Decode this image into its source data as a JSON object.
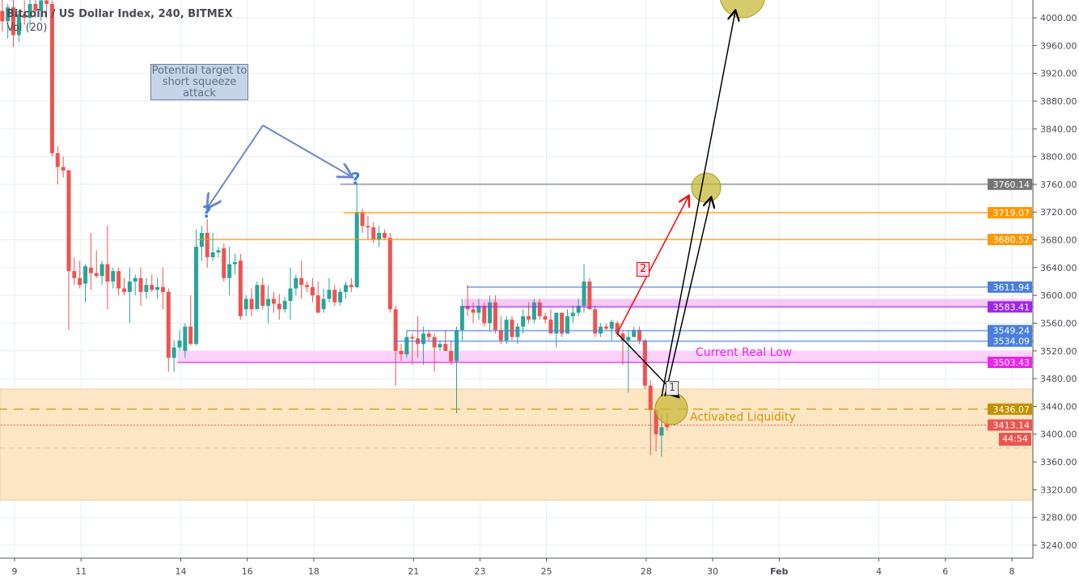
{
  "header": {
    "symbol_line": "Bitcoin / US Dollar Index, 240, BITMEX",
    "indicator": "Vol (20)"
  },
  "annotations": {
    "note": "Potential target to short squeeze attack",
    "current_real_low": "Current Real Low",
    "activated_liquidity": "Activated Liquidity",
    "step1": "1",
    "step2": "2",
    "question": "?"
  },
  "countdown": "44:54",
  "colors": {
    "up": "#26a69a",
    "down": "#ef5350",
    "orange": "#ff9800",
    "blue": "#4a7fe0",
    "purple": "#9c27b0",
    "magenta": "#ee22ee",
    "liquidity_zone": "#fde6c4",
    "circle": "#c8b93a"
  },
  "chart_data": {
    "type": "candlestick",
    "title": "Bitcoin / US Dollar Index, 240, BITMEX",
    "interval": "240",
    "ylim": [
      3220,
      4030
    ],
    "y_ticks": [
      4000,
      3960,
      3920,
      3880,
      3840,
      3800,
      3760,
      3720,
      3680,
      3640,
      3600,
      3560,
      3520,
      3480,
      3440,
      3400,
      3360,
      3320,
      3280,
      3240
    ],
    "x_ticks": [
      {
        "label": "9",
        "day": 9
      },
      {
        "label": "11",
        "day": 11
      },
      {
        "label": "14",
        "day": 14
      },
      {
        "label": "16",
        "day": 16
      },
      {
        "label": "18",
        "day": 18
      },
      {
        "label": "21",
        "day": 21
      },
      {
        "label": "23",
        "day": 23
      },
      {
        "label": "25",
        "day": 25
      },
      {
        "label": "28",
        "day": 28
      },
      {
        "label": "30",
        "day": 30
      },
      {
        "label": "Feb",
        "day": 32
      },
      {
        "label": "4",
        "day": 35
      },
      {
        "label": "6",
        "day": 37
      },
      {
        "label": "8",
        "day": 39
      }
    ],
    "grid": true,
    "first_candle_day": 8.63,
    "candles": [
      [
        4010,
        4030,
        3980,
        3995
      ],
      [
        3995,
        4020,
        3970,
        4015
      ],
      [
        4015,
        4030,
        3958,
        3975
      ],
      [
        3975,
        4010,
        3965,
        4005
      ],
      [
        4005,
        4025,
        3990,
        4000
      ],
      [
        4000,
        4030,
        3985,
        4020
      ],
      [
        4020,
        4035,
        4000,
        4010
      ],
      [
        4010,
        4030,
        3995,
        4025
      ],
      [
        4025,
        4040,
        4000,
        4020
      ],
      [
        4020,
        4025,
        3800,
        3805
      ],
      [
        3805,
        3815,
        3760,
        3785
      ],
      [
        3785,
        3800,
        3770,
        3780
      ],
      [
        3780,
        3782,
        3550,
        3635
      ],
      [
        3635,
        3655,
        3615,
        3625
      ],
      [
        3625,
        3650,
        3610,
        3615
      ],
      [
        3617,
        3645,
        3590,
        3642
      ],
      [
        3640,
        3690,
        3608,
        3632
      ],
      [
        3632,
        3665,
        3625,
        3628
      ],
      [
        3628,
        3650,
        3615,
        3645
      ],
      [
        3645,
        3700,
        3580,
        3620
      ],
      [
        3620,
        3640,
        3610,
        3635
      ],
      [
        3635,
        3640,
        3600,
        3610
      ],
      [
        3610,
        3625,
        3600,
        3605
      ],
      [
        3605,
        3640,
        3560,
        3620
      ],
      [
        3620,
        3630,
        3600,
        3625
      ],
      [
        3625,
        3640,
        3585,
        3605
      ],
      [
        3605,
        3625,
        3595,
        3615
      ],
      [
        3615,
        3630,
        3605,
        3608
      ],
      [
        3608,
        3625,
        3595,
        3612
      ],
      [
        3612,
        3640,
        3580,
        3605
      ],
      [
        3605,
        3610,
        3490,
        3510
      ],
      [
        3510,
        3535,
        3490,
        3525
      ],
      [
        3525,
        3550,
        3520,
        3535
      ],
      [
        3520,
        3560,
        3510,
        3555
      ],
      [
        3555,
        3600,
        3528,
        3530
      ],
      [
        3530,
        3695,
        3528,
        3670
      ],
      [
        3670,
        3700,
        3650,
        3690
      ],
      [
        3690,
        3710,
        3640,
        3655
      ],
      [
        3655,
        3690,
        3650,
        3662
      ],
      [
        3662,
        3670,
        3655,
        3665
      ],
      [
        3668,
        3675,
        3620,
        3625
      ],
      [
        3625,
        3670,
        3600,
        3645
      ],
      [
        3645,
        3660,
        3630,
        3648
      ],
      [
        3650,
        3660,
        3565,
        3570
      ],
      [
        3580,
        3600,
        3570,
        3595
      ],
      [
        3595,
        3610,
        3570,
        3580
      ],
      [
        3580,
        3620,
        3580,
        3615
      ],
      [
        3615,
        3625,
        3580,
        3585
      ],
      [
        3585,
        3615,
        3560,
        3595
      ],
      [
        3595,
        3605,
        3575,
        3588
      ],
      [
        3588,
        3602,
        3565,
        3580
      ],
      [
        3580,
        3598,
        3575,
        3592
      ],
      [
        3592,
        3640,
        3565,
        3610
      ],
      [
        3610,
        3630,
        3600,
        3625
      ],
      [
        3625,
        3650,
        3595,
        3615
      ],
      [
        3615,
        3620,
        3605,
        3612
      ],
      [
        3612,
        3625,
        3590,
        3600
      ],
      [
        3600,
        3620,
        3575,
        3575
      ],
      [
        3580,
        3610,
        3575,
        3595
      ],
      [
        3595,
        3625,
        3590,
        3608
      ],
      [
        3608,
        3615,
        3585,
        3590
      ],
      [
        3590,
        3610,
        3585,
        3605
      ],
      [
        3605,
        3620,
        3595,
        3615
      ],
      [
        3615,
        3625,
        3605,
        3612
      ],
      [
        3612,
        3762,
        3610,
        3720
      ],
      [
        3720,
        3725,
        3690,
        3700
      ],
      [
        3700,
        3715,
        3680,
        3698
      ],
      [
        3698,
        3705,
        3675,
        3680
      ],
      [
        3680,
        3700,
        3670,
        3690
      ],
      [
        3690,
        3695,
        3680,
        3683
      ],
      [
        3683,
        3690,
        3575,
        3580
      ],
      [
        3580,
        3585,
        3470,
        3520
      ],
      [
        3520,
        3530,
        3505,
        3515
      ],
      [
        3515,
        3550,
        3510,
        3540
      ],
      [
        3540,
        3545,
        3500,
        3538
      ],
      [
        3538,
        3570,
        3510,
        3530
      ],
      [
        3530,
        3555,
        3500,
        3545
      ],
      [
        3545,
        3550,
        3535,
        3540
      ],
      [
        3540,
        3545,
        3490,
        3525
      ],
      [
        3525,
        3535,
        3520,
        3530
      ],
      [
        3530,
        3550,
        3520,
        3520
      ],
      [
        3520,
        3535,
        3500,
        3505
      ],
      [
        3505,
        3555,
        3430,
        3550
      ],
      [
        3550,
        3595,
        3535,
        3585
      ],
      [
        3585,
        3615,
        3570,
        3580
      ],
      [
        3580,
        3590,
        3560,
        3575
      ],
      [
        3575,
        3595,
        3565,
        3585
      ],
      [
        3585,
        3590,
        3555,
        3560
      ],
      [
        3560,
        3600,
        3548,
        3590
      ],
      [
        3590,
        3600,
        3545,
        3550
      ],
      [
        3550,
        3570,
        3530,
        3535
      ],
      [
        3535,
        3570,
        3530,
        3565
      ],
      [
        3565,
        3570,
        3535,
        3540
      ],
      [
        3540,
        3560,
        3530,
        3555
      ],
      [
        3555,
        3580,
        3545,
        3570
      ],
      [
        3570,
        3590,
        3560,
        3565
      ],
      [
        3565,
        3595,
        3560,
        3590
      ],
      [
        3590,
        3595,
        3565,
        3570
      ],
      [
        3570,
        3575,
        3560,
        3565
      ],
      [
        3565,
        3580,
        3545,
        3545
      ],
      [
        3545,
        3575,
        3525,
        3575
      ],
      [
        3575,
        3575,
        3540,
        3545
      ],
      [
        3545,
        3580,
        3545,
        3570
      ],
      [
        3570,
        3585,
        3560,
        3575
      ],
      [
        3575,
        3595,
        3570,
        3585
      ],
      [
        3585,
        3645,
        3575,
        3620
      ],
      [
        3620,
        3625,
        3580,
        3580
      ],
      [
        3580,
        3585,
        3540,
        3545
      ],
      [
        3545,
        3560,
        3540,
        3555
      ],
      [
        3555,
        3560,
        3550,
        3552
      ],
      [
        3552,
        3565,
        3535,
        3562
      ],
      [
        3560,
        3563,
        3540,
        3545
      ],
      [
        3545,
        3550,
        3500,
        3535
      ],
      [
        3535,
        3550,
        3460,
        3540
      ],
      [
        3540,
        3555,
        3540,
        3550
      ],
      [
        3550,
        3555,
        3530,
        3535
      ],
      [
        3535,
        3537,
        3465,
        3470
      ],
      [
        3470,
        3478,
        3370,
        3435
      ],
      [
        3435,
        3435,
        3375,
        3400
      ],
      [
        3398,
        3430,
        3368,
        3410
      ],
      [
        3415,
        3430,
        3405,
        3410
      ]
    ],
    "levels": [
      {
        "price": 3760.14,
        "label": "3760.14",
        "color": "#757575",
        "from_day": 18.8
      },
      {
        "price": 3719.07,
        "label": "3719.07",
        "color": "#ff9800",
        "from_day": 18.9
      },
      {
        "price": 3680.57,
        "label": "3680.57",
        "color": "#ff9800",
        "from_day": 14.5
      },
      {
        "price": 3611.94,
        "label": "3611.94",
        "color": "#4a7fe0",
        "from_day": 22.6
      },
      {
        "price": 3583.41,
        "label": "3583.41",
        "color": "#9c27ee",
        "from_day": 22.5
      },
      {
        "price": 3549.24,
        "label": "3549.24",
        "color": "#4a7fe0",
        "from_day": 20.8
      },
      {
        "price": 3534.09,
        "label": "3534.09",
        "color": "#4a7fe0",
        "from_day": 20.4
      },
      {
        "price": 3503.43,
        "label": "3503.43",
        "color": "#ee22ee",
        "from_day": 13.9
      },
      {
        "price": 3436.07,
        "label": "3436.07",
        "color": "#c49000",
        "from_day": 8.0
      },
      {
        "price": 3413.14,
        "label": "3413.14",
        "color": "#ef5350",
        "from_day": 8.0
      }
    ],
    "liquidity_zone": [
      3305,
      3465
    ],
    "current_price": 3413.14
  }
}
